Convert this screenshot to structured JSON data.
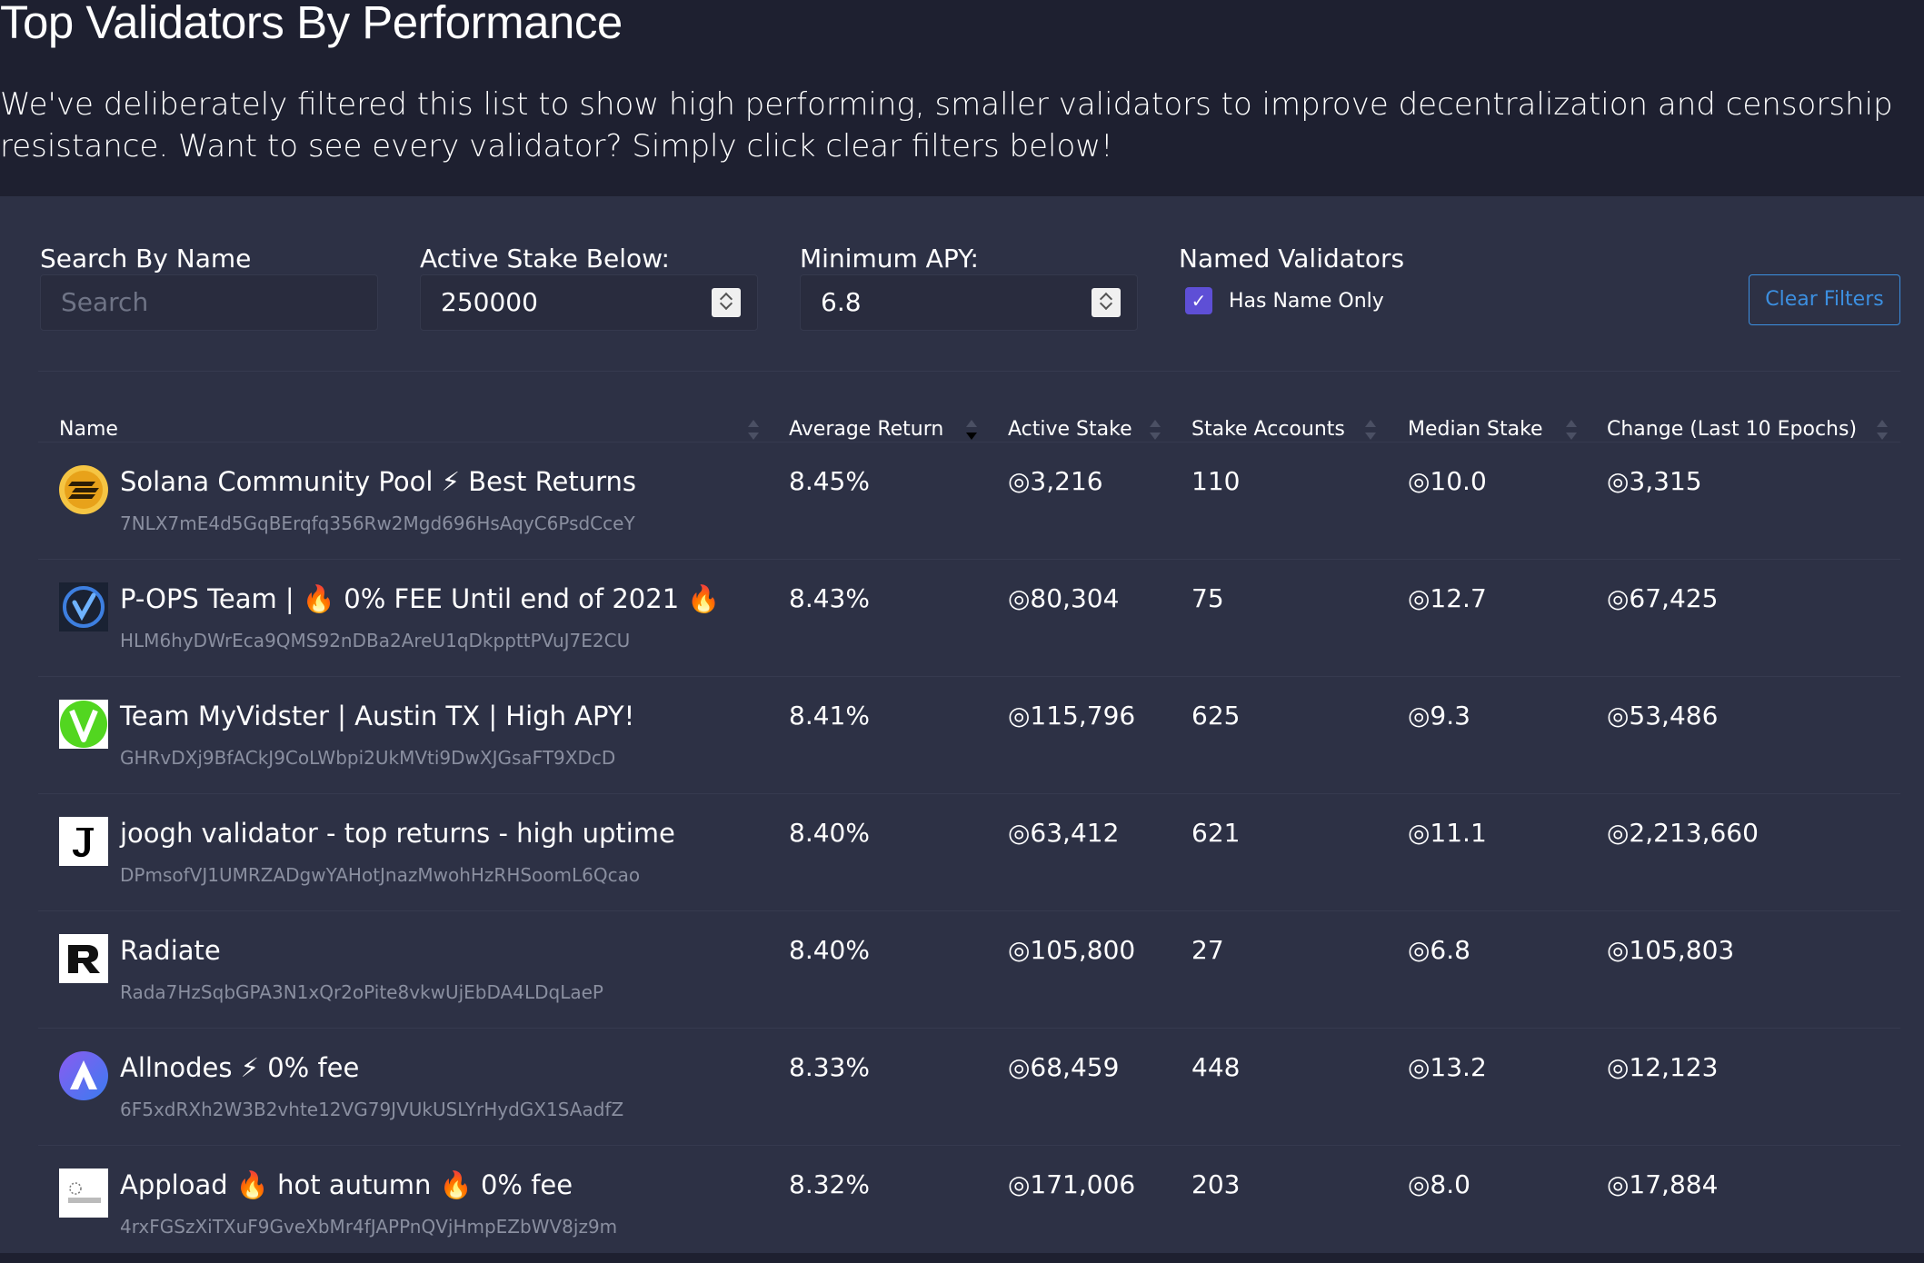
{
  "page": {
    "title": "Top Validators By Performance",
    "description": "We've deliberately filtered this list to show high performing, smaller validators to improve decentralization and censorship resistance. Want to see every validator? Simply click clear filters below!"
  },
  "filters": {
    "search_label": "Search By Name",
    "search_placeholder": "Search",
    "stake_label": "Active Stake Below:",
    "stake_value": "250000",
    "apy_label": "Minimum APY:",
    "apy_value": "6.8",
    "named_label": "Named Validators",
    "named_checkbox_label": "Has Name Only",
    "named_checked": true,
    "clear_button": "Clear Filters"
  },
  "table": {
    "columns": [
      "Name",
      "Average Return",
      "Active Stake",
      "Stake Accounts",
      "Median Stake",
      "Change (Last 10 Epochs)"
    ],
    "rows": [
      {
        "name": "Solana Community Pool ⚡ Best Returns",
        "address": "7NLX7mE4d5GqBErqfq356Rw2Mgd696HsAqyC6PsdCceY",
        "avg_return": "8.45%",
        "active_stake": "◎3,216",
        "stake_accounts": "110",
        "median_stake": "◎10.0",
        "change": "◎3,315",
        "avatar": "solana-pool-logo"
      },
      {
        "name": "P-OPS Team | 🔥 0% FEE Until end of 2021 🔥",
        "address": "HLM6hyDWrEca9QMS92nDBa2AreU1qDkppttPVuJ7E2CU",
        "avg_return": "8.43%",
        "active_stake": "◎80,304",
        "stake_accounts": "75",
        "median_stake": "◎12.7",
        "change": "◎67,425",
        "avatar": "p-ops-logo"
      },
      {
        "name": "Team MyVidster | Austin TX | High APY!",
        "address": "GHRvDXj9BfACkJ9CoLWbpi2UkMVti9DwXJGsaFT9XDcD",
        "avg_return": "8.41%",
        "active_stake": "◎115,796",
        "stake_accounts": "625",
        "median_stake": "◎9.3",
        "change": "◎53,486",
        "avatar": "myvidster-logo"
      },
      {
        "name": "joogh validator - top returns - high uptime",
        "address": "DPmsofVJ1UMRZADgwYAHotJnazMwohHzRHSoomL6Qcao",
        "avg_return": "8.40%",
        "active_stake": "◎63,412",
        "stake_accounts": "621",
        "median_stake": "◎11.1",
        "change": "◎2,213,660",
        "avatar": "joogh-logo"
      },
      {
        "name": "Radiate",
        "address": "Rada7HzSqbGPA3N1xQr2oPite8vkwUjEbDA4LDqLaeP",
        "avg_return": "8.40%",
        "active_stake": "◎105,800",
        "stake_accounts": "27",
        "median_stake": "◎6.8",
        "change": "◎105,803",
        "avatar": "radiate-logo"
      },
      {
        "name": "Allnodes ⚡ 0% fee",
        "address": "6F5xdRXh2W3B2vhte12VG79JVUkUSLYrHydGX1SAadfZ",
        "avg_return": "8.33%",
        "active_stake": "◎68,459",
        "stake_accounts": "448",
        "median_stake": "◎13.2",
        "change": "◎12,123",
        "avatar": "allnodes-logo"
      },
      {
        "name": "Appload 🔥 hot autumn 🔥 0% fee",
        "address": "4rxFGSzXiTXuF9GveXbMr4fJAPPnQVjHmpEZbWV8jz9m",
        "avg_return": "8.32%",
        "active_stake": "◎171,006",
        "stake_accounts": "203",
        "median_stake": "◎8.0",
        "change": "◎17,884",
        "avatar": "appload-logo"
      }
    ]
  },
  "colors": {
    "background": "#1e2030",
    "panel": "#2d3145",
    "accent": "#3c8fe0",
    "checkbox": "#5e4fd6"
  }
}
